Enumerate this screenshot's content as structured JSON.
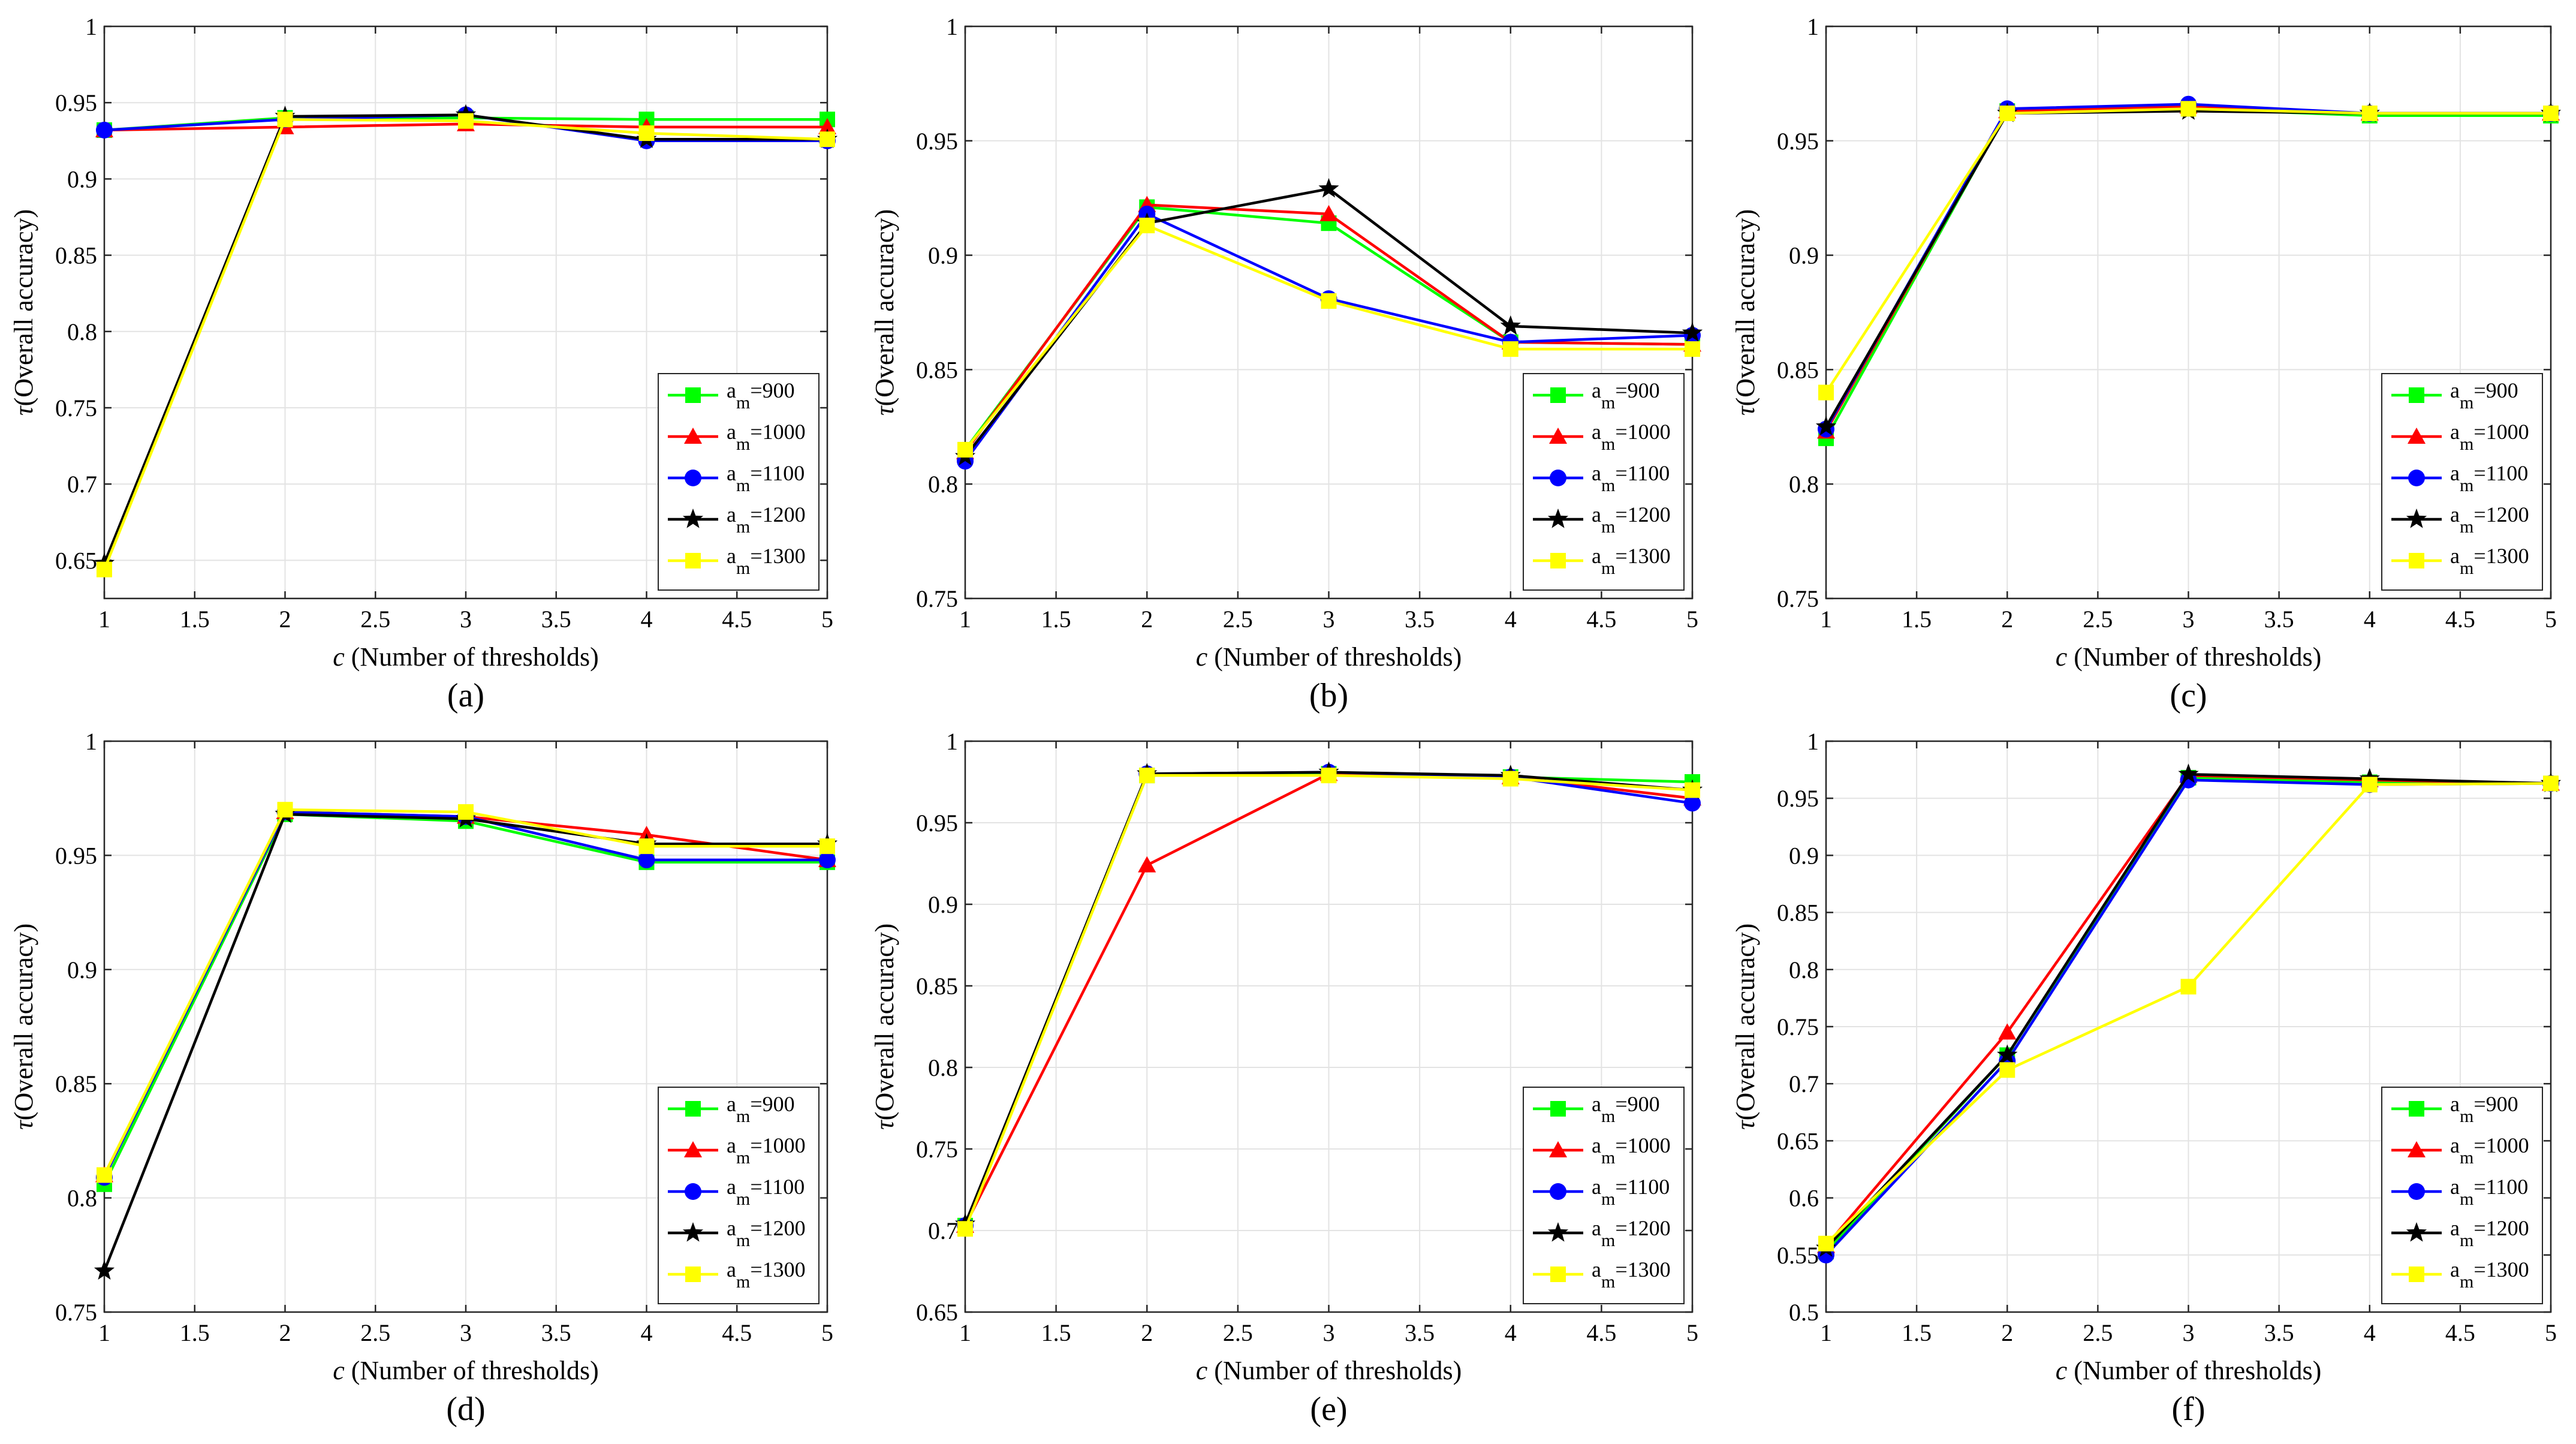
{
  "chart_data": [
    {
      "type": "line",
      "panel_label": "(a)",
      "xlabel_var": "c",
      "xlabel_text": " (Number of thresholds)",
      "ylabel_var": "τ",
      "ylabel_text": "(Overall accuracy)",
      "xlim": [
        1,
        5
      ],
      "ylim": [
        0.625,
        1
      ],
      "xticks": [
        1,
        1.5,
        2,
        2.5,
        3,
        3.5,
        4,
        4.5,
        5
      ],
      "xtick_labels": [
        "1",
        "1.5",
        "2",
        "2.5",
        "3",
        "3.5",
        "4",
        "4.5",
        "5"
      ],
      "yticks": [
        0.65,
        0.7,
        0.75,
        0.8,
        0.85,
        0.9,
        0.95,
        1
      ],
      "ytick_labels": [
        "0.65",
        "0.7",
        "0.75",
        "0.8",
        "0.85",
        "0.9",
        "0.95",
        "1"
      ],
      "grid": true,
      "legend_position": "bottom-right",
      "x": [
        1,
        2,
        3,
        4,
        5
      ],
      "series": [
        {
          "name_base": "a",
          "name_sub": "m",
          "name_value": "=900",
          "color": "#00ff00",
          "marker": "square",
          "values": [
            0.932,
            0.94,
            0.94,
            0.939,
            0.939
          ]
        },
        {
          "name_base": "a",
          "name_sub": "m",
          "name_value": "=1000",
          "color": "#ff0000",
          "marker": "triangle",
          "values": [
            0.932,
            0.934,
            0.936,
            0.934,
            0.934
          ]
        },
        {
          "name_base": "a",
          "name_sub": "m",
          "name_value": "=1100",
          "color": "#0000ff",
          "marker": "circle",
          "values": [
            0.932,
            0.939,
            0.942,
            0.925,
            0.925
          ]
        },
        {
          "name_base": "a",
          "name_sub": "m",
          "name_value": "=1200",
          "color": "#000000",
          "marker": "star",
          "values": [
            0.648,
            0.941,
            0.942,
            0.926,
            0.926
          ]
        },
        {
          "name_base": "a",
          "name_sub": "m",
          "name_value": "=1300",
          "color": "#ffff00",
          "marker": "square",
          "values": [
            0.644,
            0.939,
            0.938,
            0.93,
            0.926
          ]
        }
      ]
    },
    {
      "type": "line",
      "panel_label": "(b)",
      "xlabel_var": "c",
      "xlabel_text": " (Number of thresholds)",
      "ylabel_var": "τ",
      "ylabel_text": "(Overall accuracy)",
      "xlim": [
        1,
        5
      ],
      "ylim": [
        0.75,
        1
      ],
      "xticks": [
        1,
        1.5,
        2,
        2.5,
        3,
        3.5,
        4,
        4.5,
        5
      ],
      "xtick_labels": [
        "1",
        "1.5",
        "2",
        "2.5",
        "3",
        "3.5",
        "4",
        "4.5",
        "5"
      ],
      "yticks": [
        0.75,
        0.8,
        0.85,
        0.9,
        0.95,
        1
      ],
      "ytick_labels": [
        "0.75",
        "0.8",
        "0.85",
        "0.9",
        "0.95",
        "1"
      ],
      "grid": true,
      "legend_position": "bottom-right",
      "x": [
        1,
        2,
        3,
        4,
        5
      ],
      "series": [
        {
          "name_base": "a",
          "name_sub": "m",
          "name_value": "=900",
          "color": "#00ff00",
          "marker": "square",
          "values": [
            0.815,
            0.921,
            0.914,
            0.862,
            0.861
          ]
        },
        {
          "name_base": "a",
          "name_sub": "m",
          "name_value": "=1000",
          "color": "#ff0000",
          "marker": "triangle",
          "values": [
            0.814,
            0.922,
            0.918,
            0.862,
            0.861
          ]
        },
        {
          "name_base": "a",
          "name_sub": "m",
          "name_value": "=1100",
          "color": "#0000ff",
          "marker": "circle",
          "values": [
            0.81,
            0.918,
            0.881,
            0.862,
            0.865
          ]
        },
        {
          "name_base": "a",
          "name_sub": "m",
          "name_value": "=1200",
          "color": "#000000",
          "marker": "star",
          "values": [
            0.812,
            0.914,
            0.929,
            0.869,
            0.866
          ]
        },
        {
          "name_base": "a",
          "name_sub": "m",
          "name_value": "=1300",
          "color": "#ffff00",
          "marker": "square",
          "values": [
            0.815,
            0.913,
            0.88,
            0.859,
            0.859
          ]
        }
      ]
    },
    {
      "type": "line",
      "panel_label": "(c)",
      "xlabel_var": "c",
      "xlabel_text": " (Number of thresholds)",
      "ylabel_var": "τ",
      "ylabel_text": "(Overall accuracy)",
      "xlim": [
        1,
        5
      ],
      "ylim": [
        0.75,
        1
      ],
      "xticks": [
        1,
        1.5,
        2,
        2.5,
        3,
        3.5,
        4,
        4.5,
        5
      ],
      "xtick_labels": [
        "1",
        "1.5",
        "2",
        "2.5",
        "3",
        "3.5",
        "4",
        "4.5",
        "5"
      ],
      "yticks": [
        0.75,
        0.8,
        0.85,
        0.9,
        0.95,
        1
      ],
      "ytick_labels": [
        "0.75",
        "0.8",
        "0.85",
        "0.9",
        "0.95",
        "1"
      ],
      "grid": true,
      "legend_position": "bottom-right",
      "x": [
        1,
        2,
        3,
        4,
        5
      ],
      "series": [
        {
          "name_base": "a",
          "name_sub": "m",
          "name_value": "=900",
          "color": "#00ff00",
          "marker": "square",
          "values": [
            0.82,
            0.963,
            0.964,
            0.961,
            0.961
          ]
        },
        {
          "name_base": "a",
          "name_sub": "m",
          "name_value": "=1000",
          "color": "#ff0000",
          "marker": "triangle",
          "values": [
            0.823,
            0.963,
            0.965,
            0.962,
            0.962
          ]
        },
        {
          "name_base": "a",
          "name_sub": "m",
          "name_value": "=1100",
          "color": "#0000ff",
          "marker": "circle",
          "values": [
            0.824,
            0.964,
            0.966,
            0.962,
            0.962
          ]
        },
        {
          "name_base": "a",
          "name_sub": "m",
          "name_value": "=1200",
          "color": "#000000",
          "marker": "star",
          "values": [
            0.825,
            0.962,
            0.963,
            0.962,
            0.962
          ]
        },
        {
          "name_base": "a",
          "name_sub": "m",
          "name_value": "=1300",
          "color": "#ffff00",
          "marker": "square",
          "values": [
            0.84,
            0.962,
            0.964,
            0.962,
            0.962
          ]
        }
      ]
    },
    {
      "type": "line",
      "panel_label": "(d)",
      "xlabel_var": "c",
      "xlabel_text": " (Number of thresholds)",
      "ylabel_var": "τ",
      "ylabel_text": "(Overall accuracy)",
      "xlim": [
        1,
        5
      ],
      "ylim": [
        0.75,
        1
      ],
      "xticks": [
        1,
        1.5,
        2,
        2.5,
        3,
        3.5,
        4,
        4.5,
        5
      ],
      "xtick_labels": [
        "1",
        "1.5",
        "2",
        "2.5",
        "3",
        "3.5",
        "4",
        "4.5",
        "5"
      ],
      "yticks": [
        0.75,
        0.8,
        0.85,
        0.9,
        0.95,
        1
      ],
      "ytick_labels": [
        "0.75",
        "0.8",
        "0.85",
        "0.9",
        "0.95",
        "1"
      ],
      "grid": true,
      "legend_position": "bottom-right",
      "x": [
        1,
        2,
        3,
        4,
        5
      ],
      "series": [
        {
          "name_base": "a",
          "name_sub": "m",
          "name_value": "=900",
          "color": "#00ff00",
          "marker": "square",
          "values": [
            0.806,
            0.968,
            0.965,
            0.947,
            0.947
          ]
        },
        {
          "name_base": "a",
          "name_sub": "m",
          "name_value": "=1000",
          "color": "#ff0000",
          "marker": "triangle",
          "values": [
            0.81,
            0.969,
            0.967,
            0.959,
            0.948
          ]
        },
        {
          "name_base": "a",
          "name_sub": "m",
          "name_value": "=1100",
          "color": "#0000ff",
          "marker": "circle",
          "values": [
            0.809,
            0.969,
            0.967,
            0.948,
            0.948
          ]
        },
        {
          "name_base": "a",
          "name_sub": "m",
          "name_value": "=1200",
          "color": "#000000",
          "marker": "star",
          "values": [
            0.768,
            0.968,
            0.966,
            0.955,
            0.955
          ]
        },
        {
          "name_base": "a",
          "name_sub": "m",
          "name_value": "=1300",
          "color": "#ffff00",
          "marker": "square",
          "values": [
            0.81,
            0.97,
            0.969,
            0.954,
            0.954
          ]
        }
      ]
    },
    {
      "type": "line",
      "panel_label": "(e)",
      "xlabel_var": "c",
      "xlabel_text": " (Number of thresholds)",
      "ylabel_var": "τ",
      "ylabel_text": "(Overall accuracy)",
      "xlim": [
        1,
        5
      ],
      "ylim": [
        0.65,
        1
      ],
      "xticks": [
        1,
        1.5,
        2,
        2.5,
        3,
        3.5,
        4,
        4.5,
        5
      ],
      "xtick_labels": [
        "1",
        "1.5",
        "2",
        "2.5",
        "3",
        "3.5",
        "4",
        "4.5",
        "5"
      ],
      "yticks": [
        0.65,
        0.7,
        0.75,
        0.8,
        0.85,
        0.9,
        0.95,
        1
      ],
      "ytick_labels": [
        "0.65",
        "0.7",
        "0.75",
        "0.8",
        "0.85",
        "0.9",
        "0.95",
        "1"
      ],
      "grid": true,
      "legend_position": "bottom-right",
      "x": [
        1,
        2,
        3,
        4,
        5
      ],
      "series": [
        {
          "name_base": "a",
          "name_sub": "m",
          "name_value": "=900",
          "color": "#00ff00",
          "marker": "square",
          "values": [
            0.703,
            0.979,
            0.98,
            0.978,
            0.975
          ]
        },
        {
          "name_base": "a",
          "name_sub": "m",
          "name_value": "=1000",
          "color": "#ff0000",
          "marker": "triangle",
          "values": [
            0.703,
            0.924,
            0.98,
            0.978,
            0.965
          ]
        },
        {
          "name_base": "a",
          "name_sub": "m",
          "name_value": "=1100",
          "color": "#0000ff",
          "marker": "circle",
          "values": [
            0.703,
            0.98,
            0.981,
            0.978,
            0.962
          ]
        },
        {
          "name_base": "a",
          "name_sub": "m",
          "name_value": "=1200",
          "color": "#000000",
          "marker": "star",
          "values": [
            0.704,
            0.98,
            0.981,
            0.979,
            0.97
          ]
        },
        {
          "name_base": "a",
          "name_sub": "m",
          "name_value": "=1300",
          "color": "#ffff00",
          "marker": "square",
          "values": [
            0.701,
            0.979,
            0.979,
            0.977,
            0.97
          ]
        }
      ]
    },
    {
      "type": "line",
      "panel_label": "(f)",
      "xlabel_var": "c",
      "xlabel_text": " (Number of thresholds)",
      "ylabel_var": "τ",
      "ylabel_text": "(Overall accuracy)",
      "xlim": [
        1,
        5
      ],
      "ylim": [
        0.5,
        1
      ],
      "xticks": [
        1,
        1.5,
        2,
        2.5,
        3,
        3.5,
        4,
        4.5,
        5
      ],
      "xtick_labels": [
        "1",
        "1.5",
        "2",
        "2.5",
        "3",
        "3.5",
        "4",
        "4.5",
        "5"
      ],
      "yticks": [
        0.5,
        0.55,
        0.6,
        0.65,
        0.7,
        0.75,
        0.8,
        0.85,
        0.9,
        0.95,
        1
      ],
      "ytick_labels": [
        "0.5",
        "0.55",
        "0.6",
        "0.65",
        "0.7",
        "0.75",
        "0.8",
        "0.85",
        "0.9",
        "0.95",
        "1"
      ],
      "grid": true,
      "legend_position": "bottom-right",
      "x": [
        1,
        2,
        3,
        4,
        5
      ],
      "series": [
        {
          "name_base": "a",
          "name_sub": "m",
          "name_value": "=900",
          "color": "#00ff00",
          "marker": "square",
          "values": [
            0.553,
            0.725,
            0.968,
            0.964,
            0.963
          ]
        },
        {
          "name_base": "a",
          "name_sub": "m",
          "name_value": "=1000",
          "color": "#ff0000",
          "marker": "triangle",
          "values": [
            0.558,
            0.745,
            0.97,
            0.966,
            0.963
          ]
        },
        {
          "name_base": "a",
          "name_sub": "m",
          "name_value": "=1100",
          "color": "#0000ff",
          "marker": "circle",
          "values": [
            0.55,
            0.72,
            0.966,
            0.962,
            0.963
          ]
        },
        {
          "name_base": "a",
          "name_sub": "m",
          "name_value": "=1200",
          "color": "#000000",
          "marker": "star",
          "values": [
            0.556,
            0.725,
            0.971,
            0.967,
            0.963
          ]
        },
        {
          "name_base": "a",
          "name_sub": "m",
          "name_value": "=1300",
          "color": "#ffff00",
          "marker": "square",
          "values": [
            0.56,
            0.712,
            0.785,
            0.962,
            0.963
          ]
        }
      ]
    }
  ]
}
